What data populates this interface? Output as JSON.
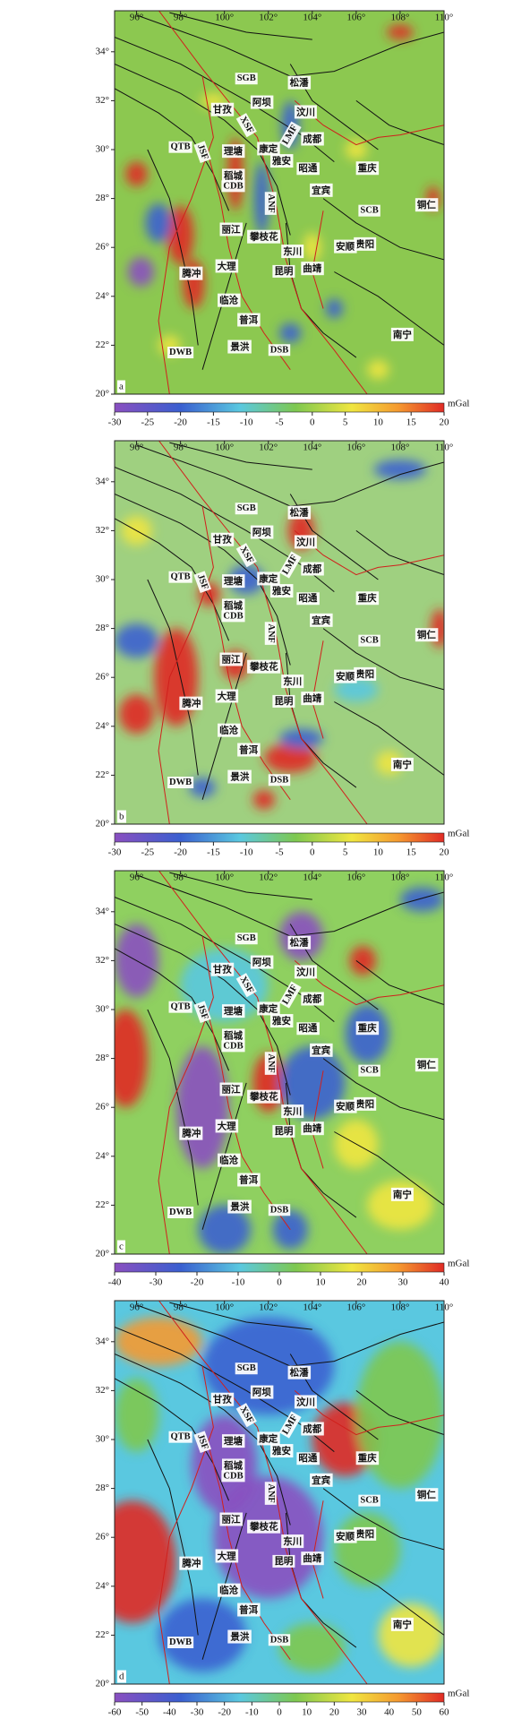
{
  "panels": [
    {
      "label": "a",
      "lon_ticks": [
        {
          "value": 96,
          "label": "96°"
        },
        {
          "value": 98,
          "label": "98°"
        },
        {
          "value": 100,
          "label": "100°"
        },
        {
          "value": 102,
          "label": "102°"
        },
        {
          "value": 104,
          "label": "104°"
        },
        {
          "value": 106,
          "label": "106°"
        },
        {
          "value": 108,
          "label": "108°"
        },
        {
          "value": 110,
          "label": "110°"
        }
      ],
      "lat_ticks": [
        {
          "value": 20,
          "label": "20°"
        },
        {
          "value": 22,
          "label": "22°"
        },
        {
          "value": 24,
          "label": "24°"
        },
        {
          "value": 26,
          "label": "26°"
        },
        {
          "value": 28,
          "label": "28°"
        },
        {
          "value": 30,
          "label": "30°"
        },
        {
          "value": 32,
          "label": "32°"
        },
        {
          "value": 34,
          "label": "34°"
        }
      ],
      "places": [
        "SGB",
        "松潘",
        "阿坝",
        "汶川",
        "甘孜",
        "XSF",
        "LMF",
        "成都",
        "QTB",
        "JSF",
        "理塘",
        "康定",
        "雅安",
        "昭通",
        "重庆",
        "稻城",
        "CDB",
        "ANF",
        "宜宾",
        "SCB",
        "铜仁",
        "丽江",
        "攀枝花",
        "东川",
        "贵阳",
        "安顺",
        "大理",
        "昆明",
        "曲靖",
        "腾冲",
        "临沧",
        "普洱",
        "南宁",
        "DWB",
        "景洪",
        "DSB"
      ],
      "colorbar": {
        "ticks": [
          -30,
          -25,
          -20,
          -15,
          -10,
          -5,
          0,
          5,
          10,
          15,
          20
        ],
        "unit": "mGal"
      }
    },
    {
      "label": "b",
      "lon_ticks": [
        {
          "value": 96,
          "label": "96°"
        },
        {
          "value": 98,
          "label": "98°"
        },
        {
          "value": 100,
          "label": "100°"
        },
        {
          "value": 102,
          "label": "102°"
        },
        {
          "value": 104,
          "label": "104°"
        },
        {
          "value": 106,
          "label": "106°"
        },
        {
          "value": 108,
          "label": "108°"
        },
        {
          "value": 110,
          "label": "110°"
        }
      ],
      "lat_ticks": [
        {
          "value": 20,
          "label": "20°"
        },
        {
          "value": 22,
          "label": "22°"
        },
        {
          "value": 24,
          "label": "24°"
        },
        {
          "value": 26,
          "label": "26°"
        },
        {
          "value": 28,
          "label": "28°"
        },
        {
          "value": 30,
          "label": "30°"
        },
        {
          "value": 32,
          "label": "32°"
        },
        {
          "value": 34,
          "label": "34°"
        }
      ],
      "places": [
        "SGB",
        "松潘",
        "阿坝",
        "汶川",
        "甘孜",
        "XSF",
        "LMF",
        "成都",
        "QTB",
        "JSF",
        "理塘",
        "康定",
        "雅安",
        "昭通",
        "重庆",
        "稻城",
        "CDB",
        "ANF",
        "宜宾",
        "SCB",
        "铜仁",
        "丽江",
        "攀枝花",
        "东川",
        "贵阳",
        "安顺",
        "大理",
        "昆明",
        "曲靖",
        "腾冲",
        "临沧",
        "普洱",
        "南宁",
        "DWB",
        "景洪",
        "DSB"
      ],
      "colorbar": {
        "ticks": [
          -30,
          -25,
          -20,
          -15,
          -10,
          -5,
          0,
          5,
          10,
          15,
          20
        ],
        "unit": "mGal"
      }
    },
    {
      "label": "c",
      "lon_ticks": [
        {
          "value": 96,
          "label": "96°"
        },
        {
          "value": 98,
          "label": "98°"
        },
        {
          "value": 100,
          "label": "100°"
        },
        {
          "value": 102,
          "label": "102°"
        },
        {
          "value": 104,
          "label": "104°"
        },
        {
          "value": 106,
          "label": "106°"
        },
        {
          "value": 108,
          "label": "108°"
        },
        {
          "value": 110,
          "label": "110°"
        }
      ],
      "lat_ticks": [
        {
          "value": 20,
          "label": "20°"
        },
        {
          "value": 22,
          "label": "22°"
        },
        {
          "value": 24,
          "label": "24°"
        },
        {
          "value": 26,
          "label": "26°"
        },
        {
          "value": 28,
          "label": "28°"
        },
        {
          "value": 30,
          "label": "30°"
        },
        {
          "value": 32,
          "label": "32°"
        },
        {
          "value": 34,
          "label": "34°"
        }
      ],
      "places": [
        "SGB",
        "松潘",
        "阿坝",
        "汶川",
        "甘孜",
        "XSF",
        "LMF",
        "成都",
        "QTB",
        "JSF",
        "理塘",
        "康定",
        "雅安",
        "昭通",
        "重庆",
        "稻城",
        "CDB",
        "ANF",
        "宜宾",
        "SCB",
        "铜仁",
        "丽江",
        "攀枝花",
        "东川",
        "贵阳",
        "安顺",
        "大理",
        "昆明",
        "曲靖",
        "腾冲",
        "临沧",
        "普洱",
        "南宁",
        "DWB",
        "景洪",
        "DSB"
      ],
      "colorbar": {
        "ticks": [
          -40,
          -30,
          -20,
          -10,
          0,
          10,
          20,
          30,
          40
        ],
        "unit": "mGal"
      }
    },
    {
      "label": "d",
      "lon_ticks": [
        {
          "value": 96,
          "label": "96°"
        },
        {
          "value": 98,
          "label": "98°"
        },
        {
          "value": 100,
          "label": "100°"
        },
        {
          "value": 102,
          "label": "102°"
        },
        {
          "value": 104,
          "label": "104°"
        },
        {
          "value": 106,
          "label": "106°"
        },
        {
          "value": 108,
          "label": "108°"
        },
        {
          "value": 110,
          "label": "110°"
        }
      ],
      "lat_ticks": [
        {
          "value": 20,
          "label": "20°"
        },
        {
          "value": 22,
          "label": "22°"
        },
        {
          "value": 24,
          "label": "24°"
        },
        {
          "value": 26,
          "label": "26°"
        },
        {
          "value": 28,
          "label": "28°"
        },
        {
          "value": 30,
          "label": "30°"
        },
        {
          "value": 32,
          "label": "32°"
        },
        {
          "value": 34,
          "label": "34°"
        }
      ],
      "places": [
        "SGB",
        "松潘",
        "阿坝",
        "汶川",
        "甘孜",
        "XSF",
        "LMF",
        "成都",
        "QTB",
        "JSF",
        "理塘",
        "康定",
        "雅安",
        "昭通",
        "重庆",
        "稻城",
        "CDB",
        "ANF",
        "宜宾",
        "SCB",
        "铜仁",
        "丽江",
        "攀枝花",
        "东川",
        "贵阳",
        "安顺",
        "大理",
        "昆明",
        "曲靖",
        "腾冲",
        "临沧",
        "普洱",
        "南宁",
        "DWB",
        "景洪",
        "DSB"
      ],
      "colorbar": {
        "ticks": [
          -60,
          -50,
          -40,
          -30,
          -20,
          -10,
          0,
          10,
          20,
          30,
          40,
          50,
          60
        ],
        "unit": "mGal"
      }
    }
  ]
}
